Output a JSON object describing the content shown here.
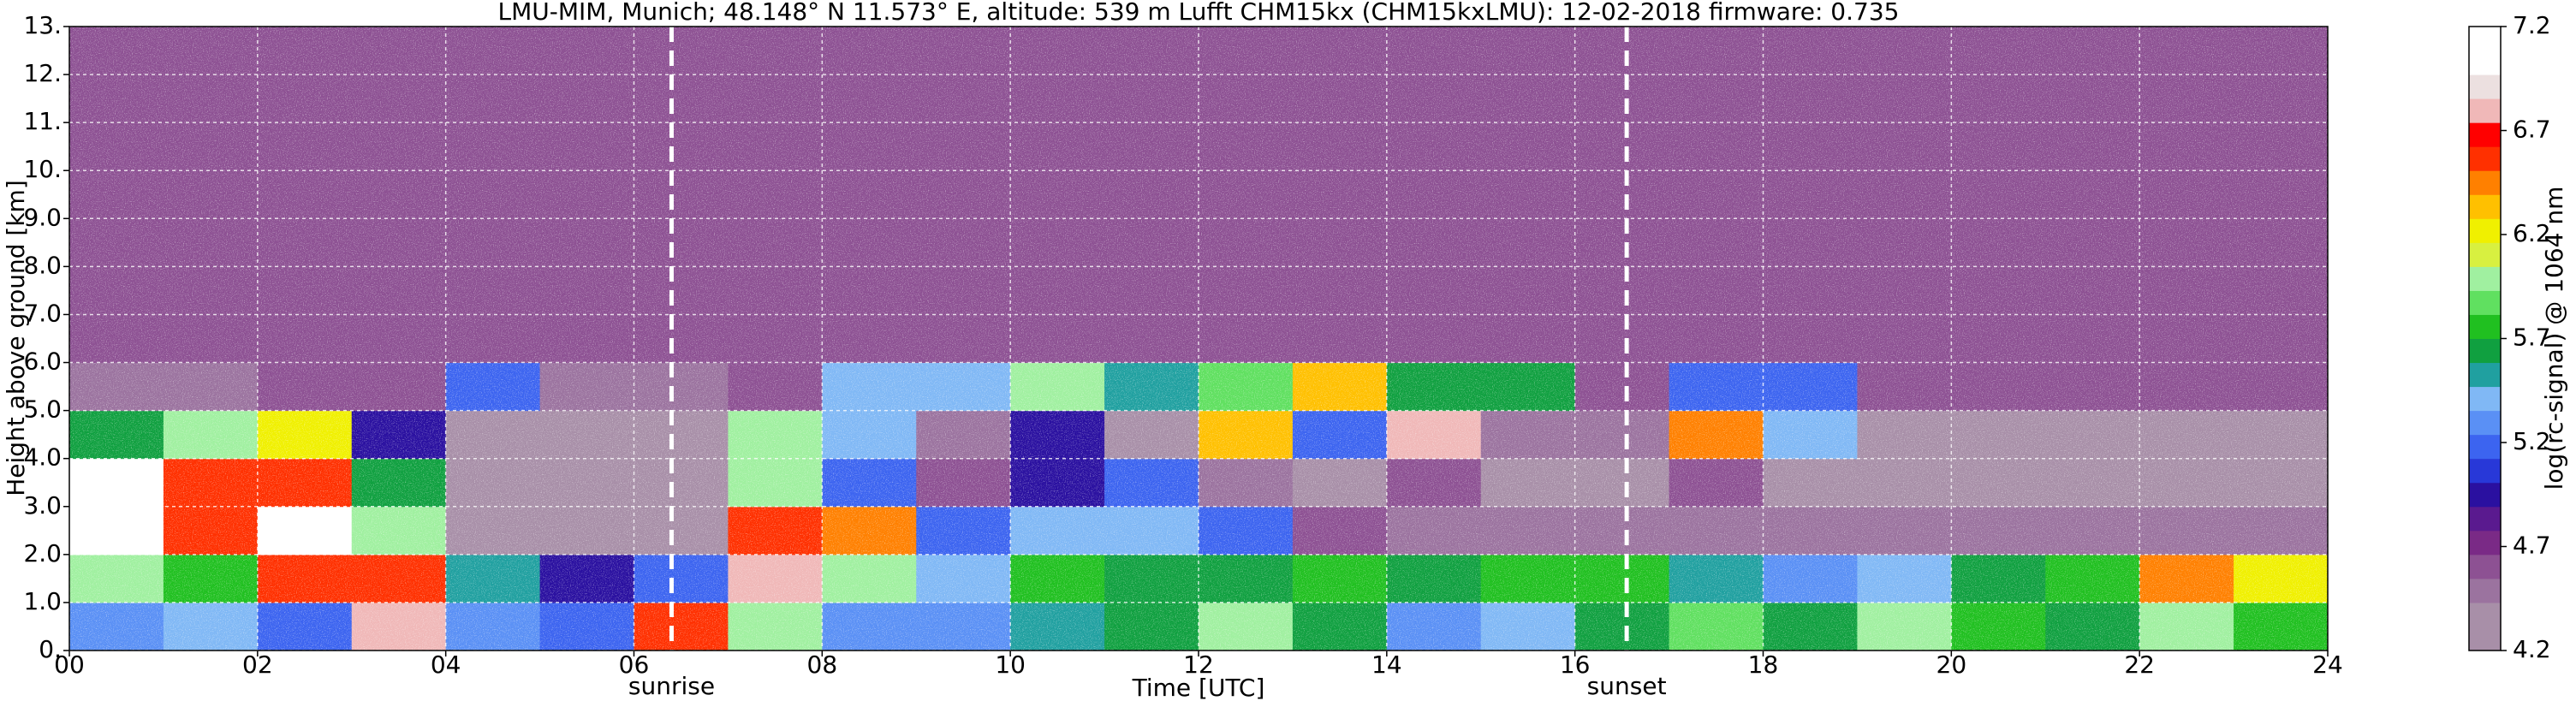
{
  "chart_data": {
    "type": "heatmap",
    "title": "LMU-MIM, Munich; 48.148° N 11.573° E, altitude: 539 m    Lufft CHM15kx (CHM15kxLMU): 12-02-2018    firmware: 0.735",
    "x_label": "Time [UTC]",
    "y_label": "Height above ground [km]",
    "xlim": [
      0,
      24
    ],
    "ylim": [
      0,
      13
    ],
    "xticks": [
      {
        "value": 0,
        "label": "00"
      },
      {
        "value": 2,
        "label": "02"
      },
      {
        "value": 4,
        "label": "04"
      },
      {
        "value": 6,
        "label": "06"
      },
      {
        "value": 8,
        "label": "08"
      },
      {
        "value": 10,
        "label": "10"
      },
      {
        "value": 12,
        "label": "12"
      },
      {
        "value": 14,
        "label": "14"
      },
      {
        "value": 16,
        "label": "16"
      },
      {
        "value": 18,
        "label": "18"
      },
      {
        "value": 20,
        "label": "20"
      },
      {
        "value": 22,
        "label": "22"
      },
      {
        "value": 24,
        "label": "24"
      }
    ],
    "yticks": [
      {
        "value": 0,
        "label": "0."
      },
      {
        "value": 1,
        "label": "1.0"
      },
      {
        "value": 2,
        "label": "2.0"
      },
      {
        "value": 3,
        "label": "3.0"
      },
      {
        "value": 4,
        "label": "4.0"
      },
      {
        "value": 5,
        "label": "5.0"
      },
      {
        "value": 6,
        "label": "6.0"
      },
      {
        "value": 7,
        "label": "7.0"
      },
      {
        "value": 8,
        "label": "8.0"
      },
      {
        "value": 9,
        "label": "9.0"
      },
      {
        "value": 10,
        "label": "10."
      },
      {
        "value": 11,
        "label": "11."
      },
      {
        "value": 12,
        "label": "12."
      },
      {
        "value": 13,
        "label": "13."
      }
    ],
    "grid": true,
    "annotations": [
      {
        "text": "sunrise",
        "x": 6.4
      },
      {
        "text": "sunset",
        "x": 16.55
      }
    ],
    "xbins": [
      0,
      1,
      2,
      3,
      4,
      5,
      6,
      7,
      8,
      9,
      10,
      11,
      12,
      13,
      14,
      15,
      16,
      17,
      18,
      19,
      20,
      21,
      22,
      23,
      24
    ],
    "ybins": [
      0,
      1,
      2,
      3,
      4,
      5,
      6,
      7,
      8,
      9,
      10,
      11,
      12,
      13
    ],
    "z": [
      [
        5.3,
        5.4,
        5.2,
        6.8,
        5.3,
        5.2,
        6.6,
        6.0,
        5.3,
        5.3,
        5.5,
        5.6,
        6.0,
        5.6,
        5.3,
        5.4,
        5.6,
        5.9,
        5.6,
        6.0,
        5.8,
        5.6,
        6.0,
        5.8
      ],
      [
        6.0,
        5.8,
        6.6,
        6.6,
        5.5,
        5.0,
        5.2,
        6.8,
        6.0,
        5.4,
        5.8,
        5.6,
        5.6,
        5.8,
        5.6,
        5.8,
        5.8,
        5.5,
        5.3,
        5.4,
        5.6,
        5.8,
        6.4,
        6.2
      ],
      [
        7.0,
        6.6,
        7.0,
        6.0,
        4.4,
        4.4,
        4.4,
        6.6,
        6.5,
        5.2,
        5.4,
        5.4,
        5.2,
        4.6,
        4.5,
        4.5,
        4.5,
        4.5,
        4.5,
        4.5,
        4.5,
        4.5,
        4.5,
        4.5
      ],
      [
        7.0,
        6.6,
        6.6,
        5.6,
        4.3,
        4.3,
        4.4,
        6.0,
        5.2,
        4.6,
        5.0,
        5.2,
        4.5,
        4.4,
        4.6,
        4.4,
        4.4,
        4.6,
        4.4,
        4.4,
        4.3,
        4.3,
        4.3,
        4.3
      ],
      [
        5.6,
        6.0,
        6.2,
        5.0,
        4.3,
        4.3,
        4.4,
        6.0,
        5.4,
        4.5,
        5.0,
        4.4,
        6.3,
        5.2,
        6.8,
        4.5,
        4.5,
        6.5,
        5.4,
        4.4,
        4.4,
        4.4,
        4.4,
        4.4
      ],
      [
        4.5,
        4.5,
        4.6,
        4.6,
        5.2,
        4.5,
        4.5,
        4.6,
        5.4,
        5.4,
        6.0,
        5.5,
        5.9,
        6.3,
        5.6,
        5.6,
        4.6,
        5.2,
        5.2,
        4.6,
        4.6,
        4.6,
        4.6,
        4.6
      ],
      [
        4.6,
        4.6,
        4.6,
        4.6,
        4.6,
        4.6,
        4.6,
        4.6,
        4.6,
        4.6,
        4.6,
        4.6,
        4.6,
        4.6,
        4.6,
        4.6,
        4.6,
        4.6,
        4.6,
        4.6,
        4.6,
        4.6,
        4.6,
        4.6
      ],
      [
        4.6,
        4.6,
        4.6,
        4.6,
        4.6,
        4.6,
        4.6,
        4.6,
        4.6,
        4.6,
        4.6,
        4.6,
        4.6,
        4.6,
        4.6,
        4.6,
        4.6,
        4.6,
        4.6,
        4.6,
        4.6,
        4.6,
        4.6,
        4.6
      ],
      [
        4.6,
        4.6,
        4.6,
        4.6,
        4.6,
        4.6,
        4.6,
        4.6,
        4.6,
        4.6,
        4.6,
        4.6,
        4.6,
        4.6,
        4.6,
        4.6,
        4.6,
        4.6,
        4.6,
        4.6,
        4.6,
        4.6,
        4.6,
        4.6
      ],
      [
        4.6,
        4.6,
        4.6,
        4.6,
        4.6,
        4.6,
        4.6,
        4.6,
        4.6,
        4.6,
        4.6,
        4.6,
        4.6,
        4.6,
        4.6,
        4.6,
        4.6,
        4.6,
        4.6,
        4.6,
        4.6,
        4.6,
        4.6,
        4.6
      ],
      [
        4.6,
        4.6,
        4.6,
        4.6,
        4.6,
        4.6,
        4.6,
        4.6,
        4.6,
        4.6,
        4.6,
        4.6,
        4.6,
        4.6,
        4.6,
        4.6,
        4.6,
        4.6,
        4.6,
        4.6,
        4.6,
        4.6,
        4.6,
        4.6
      ],
      [
        4.6,
        4.6,
        4.6,
        4.6,
        4.6,
        4.6,
        4.6,
        4.6,
        4.6,
        4.6,
        4.6,
        4.6,
        4.6,
        4.6,
        4.6,
        4.6,
        4.6,
        4.6,
        4.6,
        4.6,
        4.6,
        4.6,
        4.6,
        4.6
      ],
      [
        4.6,
        4.6,
        4.6,
        4.6,
        4.6,
        4.6,
        4.6,
        4.6,
        4.6,
        4.6,
        4.6,
        4.6,
        4.6,
        4.6,
        4.6,
        4.6,
        4.6,
        4.6,
        4.6,
        4.6,
        4.6,
        4.6,
        4.6,
        4.6
      ]
    ],
    "colorbar": {
      "label": "log(rc-signal) @ 1064 nm",
      "zlim": [
        4.2,
        7.2
      ],
      "ticks": [
        4.2,
        4.7,
        5.2,
        5.7,
        6.2,
        6.7,
        7.2
      ],
      "colormap": [
        "#a88fa8",
        "#a88fa8",
        "#9b739f",
        "#8d5193",
        "#7a2a86",
        "#5a1a8f",
        "#2a10a0",
        "#2838d8",
        "#3c64f0",
        "#5a90f5",
        "#80b8f5",
        "#20a0a0",
        "#10a040",
        "#20c020",
        "#60e060",
        "#a0f0a0",
        "#d8f040",
        "#f0f000",
        "#ffc000",
        "#ff8000",
        "#ff3000",
        "#ff0000",
        "#f0b8b8",
        "#ece0e0",
        "#ffffff",
        "#ffffff"
      ]
    }
  }
}
